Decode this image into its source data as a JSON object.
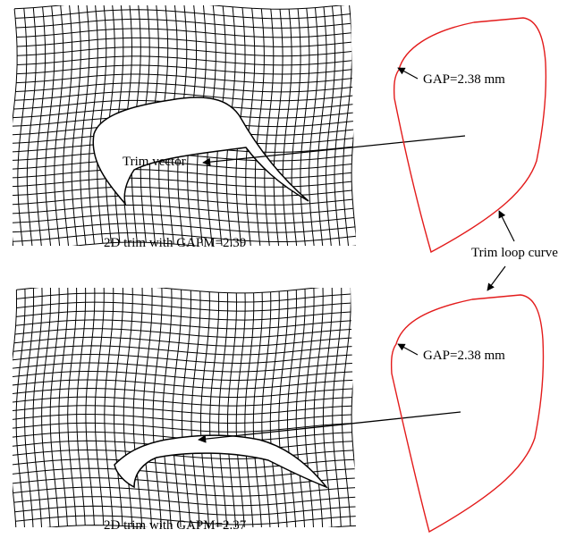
{
  "panels": [
    {
      "caption": "2D trim with GAPM=2.39",
      "trim_vector_label": "Trim vector",
      "gap_label": "GAP=2.38 mm"
    },
    {
      "caption": "2D trim with GAPM=2.37",
      "gap_label": "GAP=2.38 mm"
    }
  ],
  "trim_loop_label": "Trim loop curve",
  "colors": {
    "mesh": "#000000",
    "trim_loop": "#e31b1b",
    "background": "#ffffff"
  }
}
